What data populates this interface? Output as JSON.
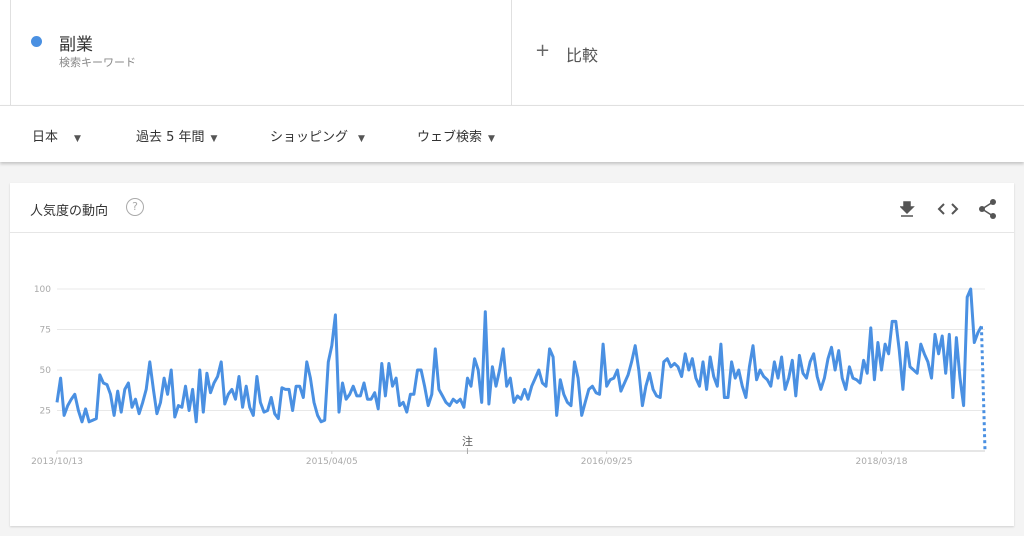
{
  "header": {
    "term_type": "検索キーワード",
    "compare": "比較"
  },
  "filters": [
    "日本",
    "過去 5 年間",
    "ショッピング",
    "ウェブ検索"
  ],
  "card_title": "人気度の動向",
  "chart_data": {
    "type": "line",
    "series": [
      {
        "name": "副業",
        "color": "#4a90e2",
        "values": [
          30,
          45,
          22,
          28,
          32,
          35,
          25,
          18,
          26,
          18,
          19,
          20,
          47,
          42,
          41,
          35,
          22,
          37,
          24,
          38,
          42,
          27,
          32,
          23,
          30,
          38,
          55,
          38,
          23,
          30,
          45,
          35,
          50,
          21,
          28,
          27,
          40,
          25,
          38,
          18,
          50,
          24,
          48,
          36,
          42,
          46,
          55,
          29,
          35,
          38,
          32,
          46,
          27,
          40,
          27,
          22,
          46,
          30,
          24,
          25,
          33,
          23,
          20,
          39,
          38,
          38,
          25,
          40,
          40,
          33,
          55,
          45,
          30,
          22,
          18,
          19,
          55,
          65,
          84,
          24,
          42,
          32,
          35,
          40,
          34,
          34,
          42,
          32,
          32,
          36,
          26,
          54,
          34,
          54,
          40,
          45,
          28,
          30,
          24,
          35,
          35,
          50,
          50,
          40,
          28,
          35,
          63,
          38,
          34,
          30,
          28,
          32,
          30,
          32,
          27,
          45,
          40,
          57,
          50,
          30,
          86,
          29,
          52,
          40,
          50,
          63,
          40,
          45,
          30,
          34,
          32,
          38,
          32,
          40,
          45,
          50,
          42,
          40,
          63,
          58,
          22,
          44,
          35,
          30,
          28,
          55,
          45,
          22,
          30,
          38,
          40,
          36,
          35,
          66,
          40,
          44,
          45,
          50,
          37,
          42,
          47,
          55,
          65,
          50,
          28,
          40,
          48,
          38,
          34,
          33,
          55,
          57,
          52,
          54,
          52,
          46,
          60,
          50,
          57,
          45,
          40,
          55,
          38,
          58,
          46,
          40,
          66,
          33,
          33,
          55,
          45,
          50,
          40,
          33,
          52,
          65,
          44,
          50,
          46,
          44,
          40,
          55,
          45,
          58,
          38,
          45,
          56,
          34,
          59,
          48,
          45,
          55,
          60,
          46,
          38,
          45,
          57,
          64,
          50,
          62,
          45,
          38,
          52,
          45,
          44,
          42,
          56,
          48,
          76,
          44,
          67,
          50,
          66,
          60,
          80,
          80,
          62,
          38,
          67,
          52,
          50,
          48,
          66,
          60,
          55,
          45,
          72,
          60,
          71,
          48,
          72,
          33,
          70,
          45,
          28,
          95,
          100,
          67,
          73,
          77,
          0
        ]
      }
    ],
    "xlim": [
      0,
      260
    ],
    "xticks": [
      {
        "value": 0,
        "label": "2013/10/13"
      },
      {
        "value": 77,
        "label": "2015/04/05"
      },
      {
        "value": 154,
        "label": "2016/09/25"
      },
      {
        "value": 231,
        "label": "2018/03/18"
      }
    ],
    "ylim": [
      0,
      100
    ],
    "yticks": [
      25,
      50,
      75,
      100
    ],
    "grid": true,
    "annotations": [
      {
        "text": "注",
        "x": 115
      }
    ]
  }
}
